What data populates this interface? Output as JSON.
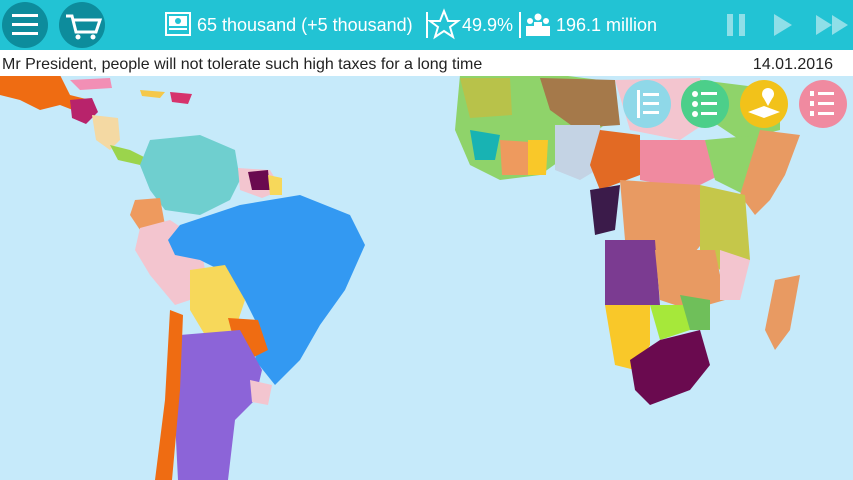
{
  "status_bar": {
    "money": "65 thousand (+5 thousand)",
    "approval": "49.9%",
    "population": "196.1 million"
  },
  "news_bar": {
    "message": "Mr President, people will not tolerate such high taxes for a long time",
    "date": "14.01.2016"
  }
}
